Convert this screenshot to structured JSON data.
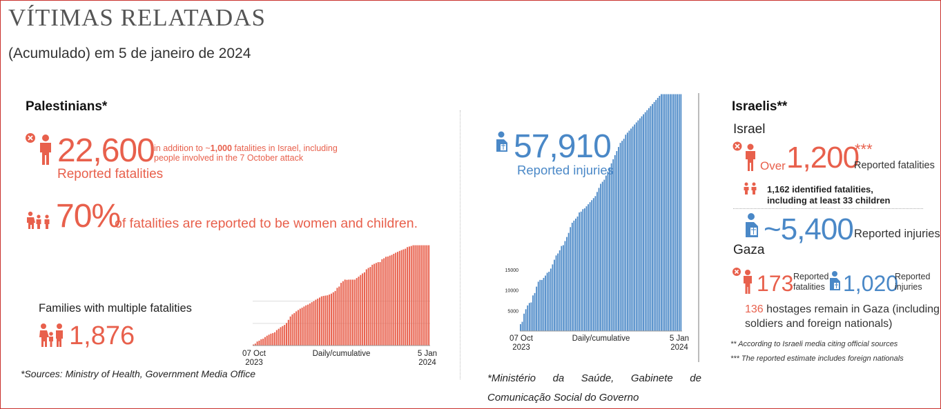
{
  "header": {
    "title": "VÍTIMAS RELATADAS",
    "subtitle": "(Acumulado) em 5 de janeiro de 2024"
  },
  "palestinians": {
    "heading": "Palestinians*",
    "fatalities_value": "22,600",
    "fatalities_note_prefix": "in addition to ~",
    "fatalities_note_bold": "1,000",
    "fatalities_note_suffix": " fatalities in Israel, including",
    "fatalities_note_line2": "people involved in the 7 October attack",
    "fatalities_label": "Reported fatalities",
    "women_children_value": "70%",
    "women_children_label": "of fatalities are reported to be women and children.",
    "families_label": "Families with multiple fatalities",
    "families_value": "1,876",
    "source": "*Sources: Ministry of Health, Government Media Office"
  },
  "injuries": {
    "value": "57,910",
    "label": "Reported injuries",
    "source_line1": "*Ministério da Saúde, Gabinete de",
    "source_line2": "Comunicação Social do Governo"
  },
  "israelis": {
    "heading": "Israelis**",
    "israel_label": "Israel",
    "over_label": "Over",
    "fatalities_value": "1,200",
    "fatalities_stars": "***",
    "fatalities_label": "Reported fatalities",
    "identified_line1": "1,162 identified fatalities,",
    "identified_line2": "including at least 33 children",
    "injuries_value": "~5,400",
    "injuries_label": "Reported injuries",
    "gaza_label": "Gaza",
    "gaza_fatalities_value": "173",
    "gaza_fatalities_label_line1": "Reported",
    "gaza_fatalities_label_line2": "fatalities",
    "gaza_injuries_value": "1,020",
    "gaza_injuries_label_line1": "Reported",
    "gaza_injuries_label_line2": "injuries",
    "hostages_value": "136",
    "hostages_text_line1": " hostages remain in Gaza (including",
    "hostages_text_line2": "soldiers and foreign nationals)",
    "note1": "** According to Israeli media citing official sources",
    "note2": "*** The reported estimate includes foreign nationals"
  },
  "colors": {
    "red": "#e8604c",
    "blue": "#4a88c7",
    "frame": "#c9302c"
  },
  "icons": [
    "close-icon",
    "person-icon",
    "family-icon",
    "injured-person-icon"
  ],
  "chart_data": [
    {
      "type": "bar",
      "name": "fatalities",
      "color": "#e8604c",
      "x_start_label": [
        "07 Oct",
        "2023"
      ],
      "x_end_label": [
        "5 Jan",
        "2024"
      ],
      "xlabel": "Daily/cumulative",
      "ylim": [
        0,
        23000
      ],
      "gridlines": [
        5000,
        10000
      ],
      "values": [
        232,
        436,
        900,
        1100,
        1417,
        1537,
        1900,
        2215,
        2450,
        2670,
        2808,
        3000,
        3478,
        3785,
        4137,
        4385,
        4651,
        5087,
        5791,
        6546,
        7028,
        7326,
        7703,
        8005,
        8306,
        8525,
        8796,
        9061,
        9227,
        9488,
        9770,
        10022,
        10328,
        10569,
        10812,
        11078,
        11180,
        11255,
        11320,
        11500,
        11700,
        12000,
        12300,
        13000,
        13300,
        14128,
        14500,
        14854,
        14800,
        14854,
        14854,
        14854,
        14854,
        15207,
        15523,
        15899,
        16248,
        16500,
        17177,
        17487,
        17700,
        18205,
        18412,
        18608,
        18787,
        18800,
        19453,
        19667,
        20000,
        20057,
        20258,
        20424,
        20674,
        20915,
        21110,
        21320,
        21507,
        21672,
        21822,
        22185,
        22313,
        22438,
        22600,
        22600,
        22600,
        22600,
        22600,
        22600,
        22600,
        22600,
        22600
      ]
    },
    {
      "type": "bar",
      "name": "injuries",
      "color": "#4a88c7",
      "x_start_label": [
        "07 Oct",
        "2023"
      ],
      "x_end_label": [
        "5 Jan",
        "2024"
      ],
      "xlabel": "Daily/cumulative",
      "ylim": [
        0,
        58000
      ],
      "yticks": [
        5000,
        10000,
        15000
      ],
      "values": [
        1697,
        2271,
        4250,
        5339,
        6268,
        6868,
        7000,
        8714,
        9300,
        10859,
        12065,
        12500,
        12493,
        13000,
        13561,
        14245,
        14500,
        15273,
        16297,
        17439,
        18484,
        18967,
        19743,
        20800,
        21000,
        22000,
        23000,
        24000,
        25408,
        26475,
        27000,
        27490,
        28000,
        29000,
        29200,
        29800,
        30000,
        30500,
        31000,
        31500,
        32000,
        32500,
        33000,
        34000,
        35000,
        36000,
        36500,
        37000,
        38000,
        39000,
        40000,
        41000,
        42000,
        43000,
        44000,
        45000,
        46000,
        46500,
        47000,
        48000,
        48500,
        49000,
        49500,
        50000,
        50500,
        51000,
        51500,
        52000,
        52500,
        53000,
        53500,
        54000,
        54500,
        55000,
        55500,
        56000,
        56500,
        57000,
        57500,
        57910,
        57910,
        57910,
        57910,
        57910,
        57910,
        57910,
        57910,
        57910,
        57910,
        57910,
        57910
      ]
    }
  ]
}
